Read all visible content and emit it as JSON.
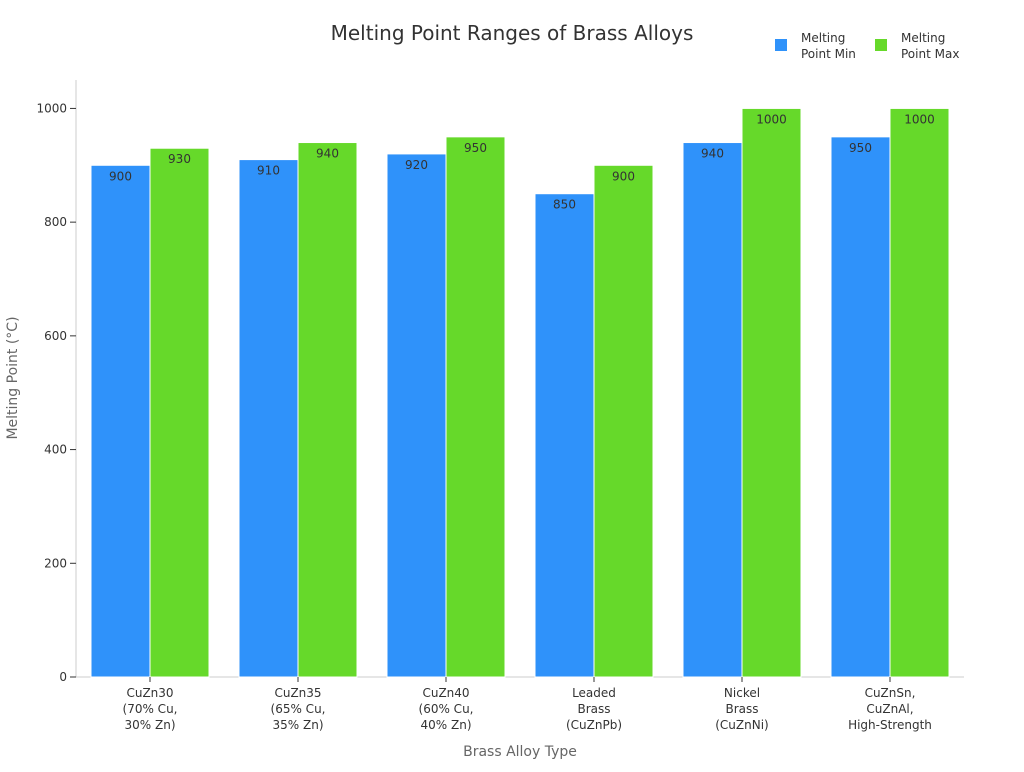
{
  "chart_data": {
    "type": "bar",
    "title": "Melting Point Ranges of Brass Alloys",
    "xlabel": "Brass Alloy Type",
    "ylabel": "Melting Point (°C)",
    "ylim": [
      0,
      1050
    ],
    "yticks": [
      0,
      200,
      400,
      600,
      800,
      1000
    ],
    "grid": false,
    "legend_position": "top-right",
    "categories": [
      [
        "CuZn30",
        "(70% Cu,",
        "30% Zn)"
      ],
      [
        "CuZn35",
        "(65% Cu,",
        "35% Zn)"
      ],
      [
        "CuZn40",
        "(60% Cu,",
        "40% Zn)"
      ],
      [
        "Leaded",
        "Brass",
        "(CuZnPb)"
      ],
      [
        "Nickel",
        "Brass",
        "(CuZnNi)"
      ],
      [
        "CuZnSn,",
        "CuZnAl,",
        "High-Strength"
      ]
    ],
    "series": [
      {
        "name": "Melting Point Min",
        "legend_lines": [
          "Melting",
          "Point Min"
        ],
        "color": "#2f92fa",
        "values": [
          900,
          910,
          920,
          850,
          940,
          950
        ]
      },
      {
        "name": "Melting Point Max",
        "legend_lines": [
          "Melting",
          "Point Max"
        ],
        "color": "#66d92a",
        "values": [
          930,
          940,
          950,
          900,
          1000,
          1000
        ]
      }
    ]
  }
}
